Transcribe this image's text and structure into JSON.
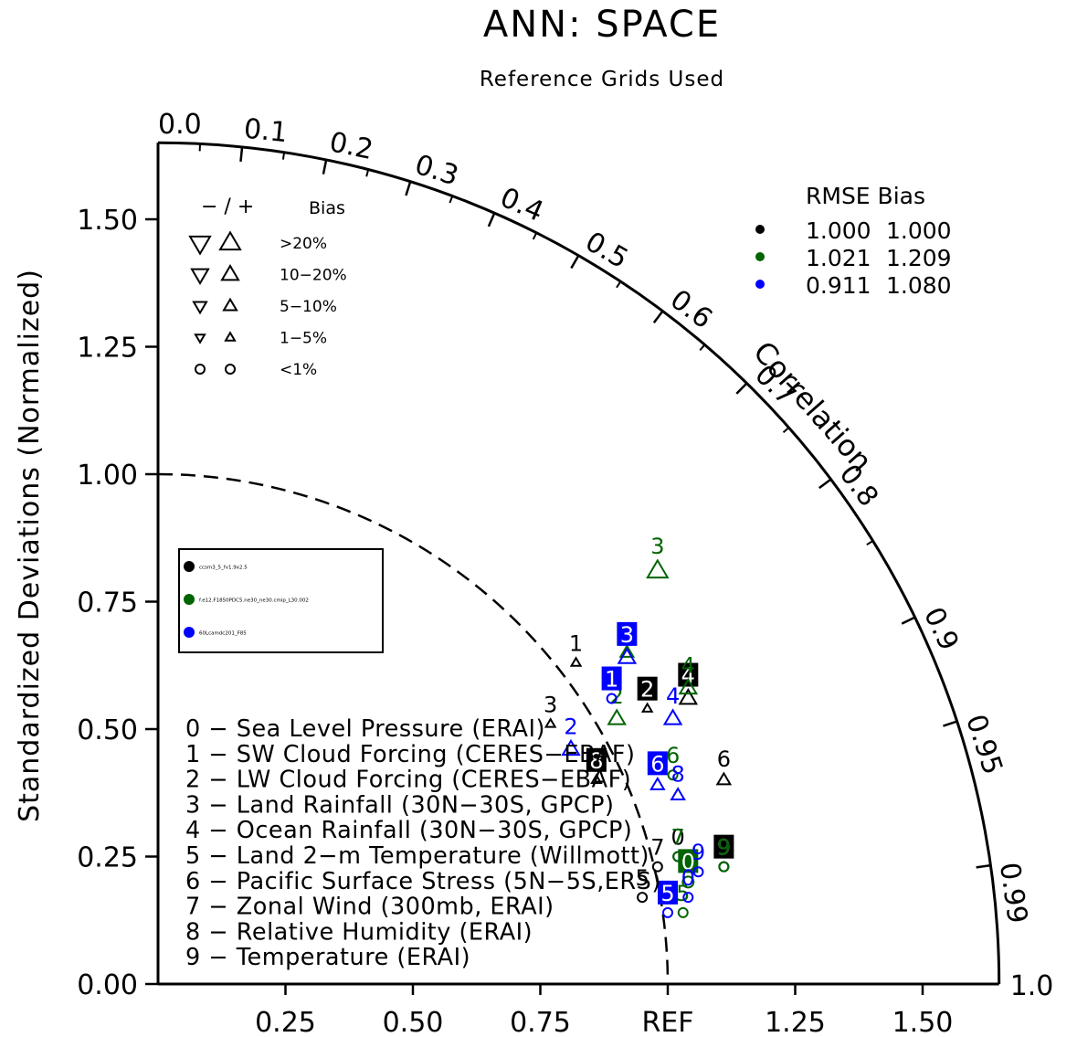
{
  "chart_data": {
    "type": "taylor",
    "title": "ANN: SPACE",
    "subtitle": "Reference Grids Used",
    "ylabel": "Standardized Deviations (Normalized)",
    "arc_label": "Correlation",
    "x_ticks": [
      "0.25",
      "0.50",
      "0.75",
      "REF",
      "1.25",
      "1.50"
    ],
    "x_tick_values": [
      0.25,
      0.5,
      0.75,
      1.0,
      1.25,
      1.5
    ],
    "y_ticks": [
      "0.00",
      "0.25",
      "0.50",
      "0.75",
      "1.00",
      "1.25",
      "1.50"
    ],
    "y_tick_values": [
      0,
      0.25,
      0.5,
      0.75,
      1.0,
      1.25,
      1.5
    ],
    "arc_max_label": "1.0",
    "smax": 1.65,
    "correlation_ticks": [
      "0.0",
      "0.1",
      "0.2",
      "0.3",
      "0.4",
      "0.5",
      "0.6",
      "0.7",
      "0.8",
      "0.9",
      "0.95",
      "0.99"
    ],
    "correlation_values": [
      0.0,
      0.1,
      0.2,
      0.3,
      0.4,
      0.5,
      0.6,
      0.7,
      0.8,
      0.9,
      0.95,
      0.99
    ],
    "grid": false,
    "bias_legend": {
      "header_symbols": "−  /  +",
      "header_label": "Bias",
      "rows": [
        {
          "label": ">20%",
          "symbol": "triangle",
          "size": 11
        },
        {
          "label": "10−20%",
          "symbol": "triangle",
          "size": 9
        },
        {
          "label": "5−10%",
          "symbol": "triangle",
          "size": 7
        },
        {
          "label": "1−5%",
          "symbol": "triangle",
          "size": 5
        },
        {
          "label": "<1%",
          "symbol": "circle",
          "size": 5
        }
      ]
    },
    "rmse_legend": {
      "header": "RMSE  Bias",
      "rows": [
        {
          "color": "#000000",
          "rmse": "1.000",
          "bias": "1.000"
        },
        {
          "color": "#006400",
          "rmse": "1.021",
          "bias": "1.209"
        },
        {
          "color": "#0000ff",
          "rmse": "0.911",
          "bias": "1.080"
        }
      ]
    },
    "case_legend": {
      "items": [
        {
          "color": "#000000",
          "label": "ccsm3_5_fv1.9x2.5"
        },
        {
          "color": "#006400",
          "label": "f.e12.F1850PDC5.ne30_ne30.cmip_L30.002"
        },
        {
          "color": "#0000ff",
          "label": "60Lcamdc201_F85"
        }
      ]
    },
    "variables": [
      "0 − Sea Level Pressure (ERAI)",
      "1 − SW Cloud Forcing (CERES−EBAF)",
      "2 − LW Cloud Forcing (CERES−EBAF)",
      "3 − Land Rainfall (30N−30S, GPCP)",
      "4 − Ocean Rainfall (30N−30S, GPCP)",
      "5 − Land 2−m Temperature (Willmott)",
      "6 − Pacific Surface Stress (5N−5S,ERS)",
      "7 − Zonal Wind (300mb, ERAI)",
      "8 − Relative Humidity (ERAI)",
      "9 − Temperature (ERAI)"
    ],
    "series": [
      {
        "color": "#000000",
        "points": [
          {
            "label": "1",
            "x": 0.82,
            "y": 0.63,
            "marker": "tri-up",
            "msize": 5,
            "boxed": false
          },
          {
            "label": "2",
            "x": 0.96,
            "y": 0.54,
            "marker": "tri-up",
            "msize": 5,
            "boxed": true
          },
          {
            "label": "3",
            "x": 0.77,
            "y": 0.51,
            "marker": "tri-up",
            "msize": 5,
            "boxed": false
          },
          {
            "label": "4",
            "x": 1.04,
            "y": 0.56,
            "marker": "tri-up",
            "msize": 9,
            "boxed": true
          },
          {
            "label": "6",
            "x": 1.11,
            "y": 0.4,
            "marker": "tri-up",
            "msize": 7,
            "boxed": false
          },
          {
            "label": "8",
            "x": 0.86,
            "y": 0.4,
            "marker": "tri-up",
            "msize": 5,
            "boxed": true
          },
          {
            "label": "5",
            "x": 0.95,
            "y": 0.17,
            "marker": "circle",
            "msize": 5,
            "boxed": false
          },
          {
            "label": "7",
            "x": 0.98,
            "y": 0.23,
            "marker": "circle",
            "msize": 5,
            "boxed": false
          },
          {
            "label": "9",
            "x": 1.11,
            "y": 0.23,
            "marker": "circle",
            "msize": 5,
            "boxed": true
          },
          {
            "label": "0",
            "x": 1.02,
            "y": 0.25,
            "marker": "circle",
            "msize": 5,
            "boxed": false
          }
        ]
      },
      {
        "color": "#006400",
        "points": [
          {
            "label": "3",
            "x": 0.98,
            "y": 0.81,
            "marker": "tri-up",
            "msize": 11,
            "boxed": false
          },
          {
            "label": "1",
            "x": 0.92,
            "y": 0.65,
            "marker": "tri-up",
            "msize": 7,
            "boxed": false
          },
          {
            "label": "2",
            "x": 0.9,
            "y": 0.52,
            "marker": "tri-up",
            "msize": 9,
            "boxed": false
          },
          {
            "label": "4",
            "x": 1.04,
            "y": 0.58,
            "marker": "tri-up",
            "msize": 9,
            "boxed": false
          },
          {
            "label": "6",
            "x": 1.01,
            "y": 0.41,
            "marker": "circle",
            "msize": 5,
            "boxed": false
          },
          {
            "label": "0",
            "x": 1.04,
            "y": 0.2,
            "marker": "circle",
            "msize": 6,
            "boxed": true
          },
          {
            "label": "5",
            "x": 1.03,
            "y": 0.14,
            "marker": "circle",
            "msize": 5,
            "boxed": false
          },
          {
            "label": "7",
            "x": 1.02,
            "y": 0.25,
            "marker": "circle",
            "msize": 5,
            "boxed": false
          },
          {
            "label": "9",
            "x": 1.11,
            "y": 0.23,
            "marker": "circle",
            "msize": 5,
            "boxed": false
          }
        ]
      },
      {
        "color": "#0000ff",
        "points": [
          {
            "label": "3",
            "x": 0.92,
            "y": 0.64,
            "marker": "tri-up",
            "msize": 9,
            "boxed": true
          },
          {
            "label": "1",
            "x": 0.89,
            "y": 0.56,
            "marker": "circle",
            "msize": 5,
            "boxed": true
          },
          {
            "label": "2",
            "x": 0.81,
            "y": 0.46,
            "marker": "tri-up",
            "msize": 9,
            "boxed": false
          },
          {
            "label": "4",
            "x": 1.01,
            "y": 0.52,
            "marker": "tri-up",
            "msize": 9,
            "boxed": false
          },
          {
            "label": "6",
            "x": 0.98,
            "y": 0.39,
            "marker": "tri-up",
            "msize": 7,
            "boxed": true
          },
          {
            "label": "8",
            "x": 1.02,
            "y": 0.37,
            "marker": "tri-up",
            "msize": 7,
            "boxed": false
          },
          {
            "label": "5",
            "x": 1.0,
            "y": 0.14,
            "marker": "circle",
            "msize": 5,
            "boxed": true
          },
          {
            "label": "0",
            "x": 1.04,
            "y": 0.17,
            "marker": "circle",
            "msize": 5,
            "boxed": false
          },
          {
            "label": "9",
            "x": 1.06,
            "y": 0.22,
            "marker": "circle",
            "msize": 5,
            "boxed": false
          }
        ]
      }
    ]
  }
}
